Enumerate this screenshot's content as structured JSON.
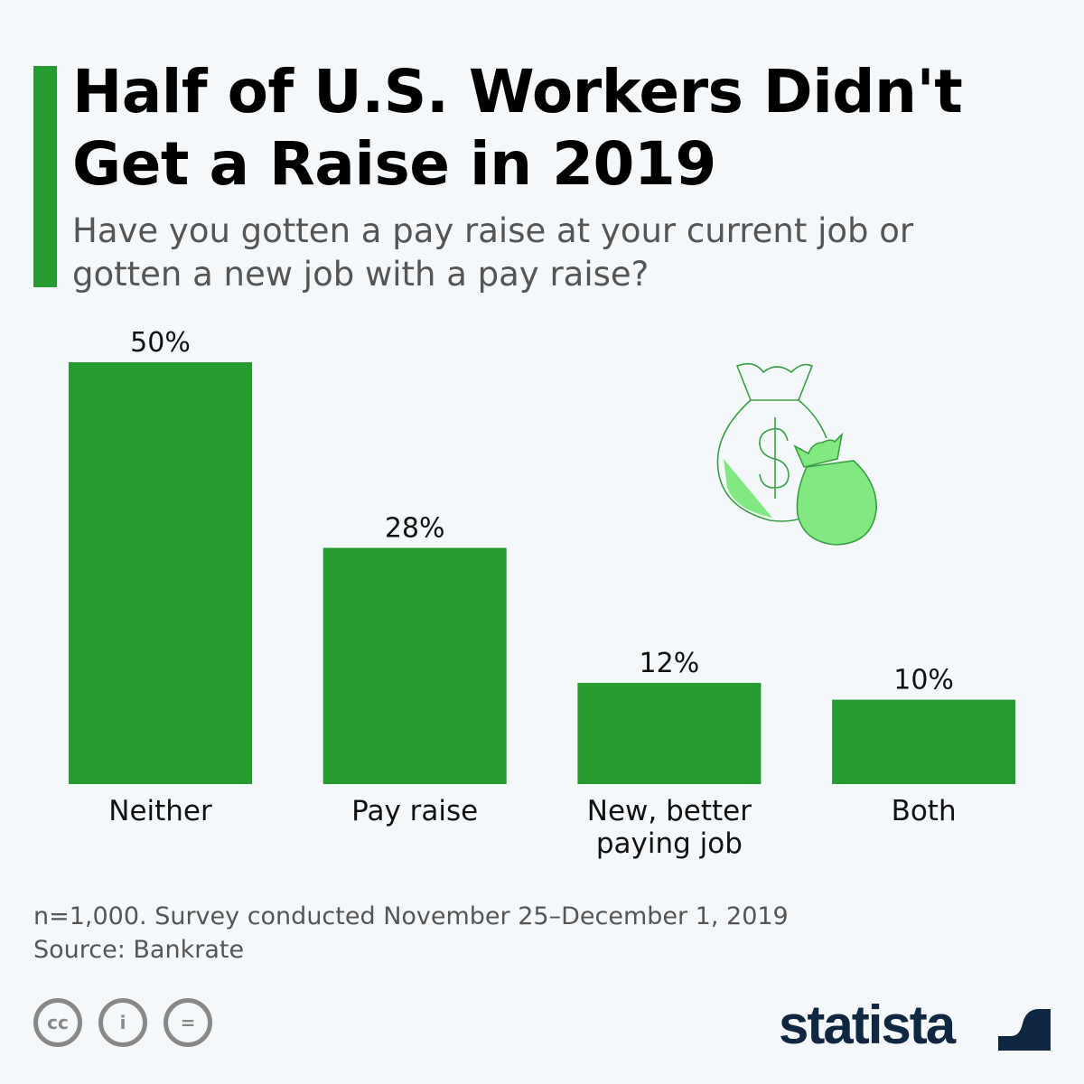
{
  "title": "Half of U.S. Workers Didn't Get a Raise in 2019",
  "subtitle": "Have you gotten a pay raise at your current job or gotten a new job with a pay raise?",
  "footnote": {
    "note": "n=1,000. Survey conducted November 25–December 1, 2019",
    "source": "Source: Bankrate"
  },
  "brand": "statista",
  "colors": {
    "bar": "#259b31",
    "accent": "#259b31",
    "icon_fill": "#82e882",
    "logo": "#0f2741"
  },
  "icons": [
    "money-bags-icon",
    "cc-icon",
    "attribution-icon",
    "no-derivatives-icon",
    "statista-logo"
  ],
  "chart_data": {
    "type": "bar",
    "categories": [
      "Neither",
      "Pay raise",
      "New, better paying job",
      "Both"
    ],
    "category_lines": [
      [
        "Neither"
      ],
      [
        "Pay raise"
      ],
      [
        "New, better",
        "paying job"
      ],
      [
        "Both"
      ]
    ],
    "values": [
      50,
      28,
      12,
      10
    ],
    "data_labels": [
      "50%",
      "28%",
      "12%",
      "10%"
    ],
    "unit": "%",
    "ylim": [
      0,
      50
    ],
    "grid": false,
    "title": "",
    "xlabel": "",
    "ylabel": ""
  }
}
